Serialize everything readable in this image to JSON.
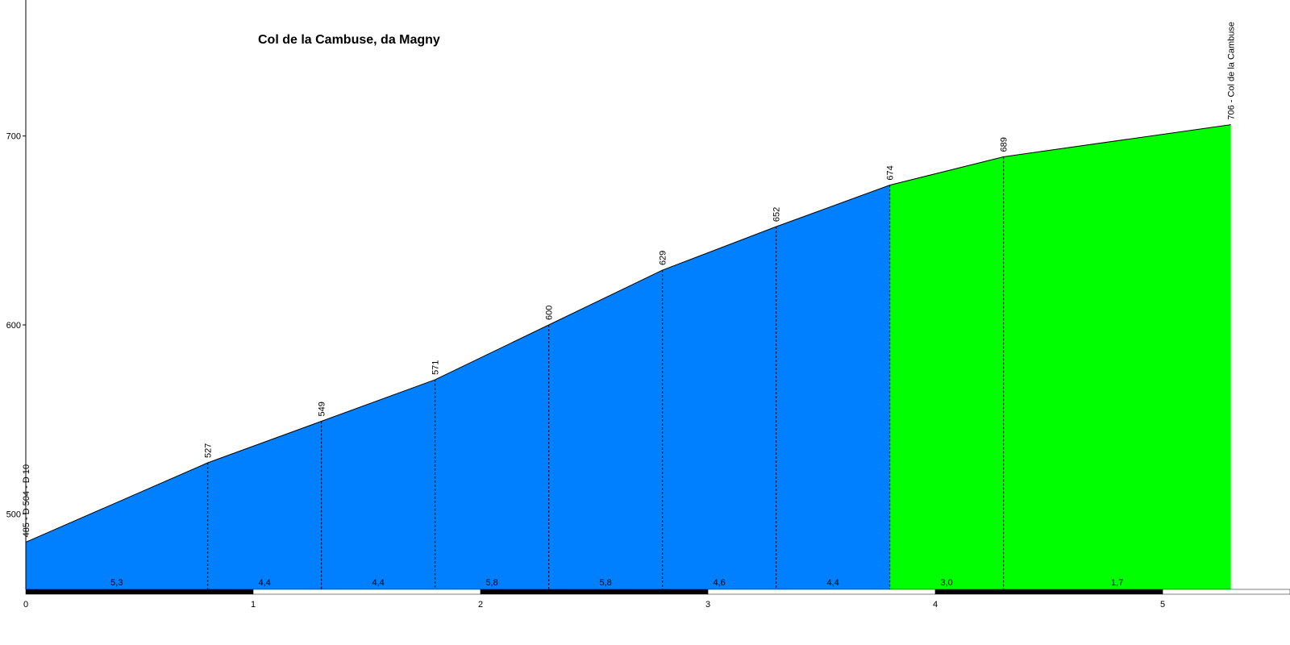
{
  "chart_data": {
    "type": "area",
    "title": "Col de la Cambuse, da Magny",
    "x": [
      0,
      0.8,
      1.3,
      1.8,
      2.3,
      2.8,
      3.3,
      3.8,
      4.3,
      5.3
    ],
    "values": [
      485,
      527,
      549,
      571,
      600,
      629,
      652,
      674,
      689,
      706
    ],
    "value_labels": [
      "485 - D 504 - D 10",
      "527",
      "549",
      "571",
      "600",
      "629",
      "652",
      "674",
      "689",
      "706 - Col de la Cambuse"
    ],
    "segments": {
      "values": [
        5.3,
        4.4,
        4.4,
        5.8,
        5.8,
        4.6,
        4.4,
        3.0,
        1.7
      ],
      "value_labels": [
        "5,3",
        "4,4",
        "4,4",
        "5,8",
        "5,8",
        "4,6",
        "4,4",
        "3,0",
        "1,7"
      ],
      "colors": [
        "#0080ff",
        "#0080ff",
        "#0080ff",
        "#0080ff",
        "#0080ff",
        "#0080ff",
        "#0080ff",
        "#00ff00",
        "#00ff00"
      ]
    },
    "xlim": [
      0,
      5.56
    ],
    "xticks": [
      0,
      1,
      2,
      3,
      4,
      5
    ],
    "ylim": [
      460,
      772
    ],
    "yticks": [
      500,
      600,
      700
    ]
  }
}
